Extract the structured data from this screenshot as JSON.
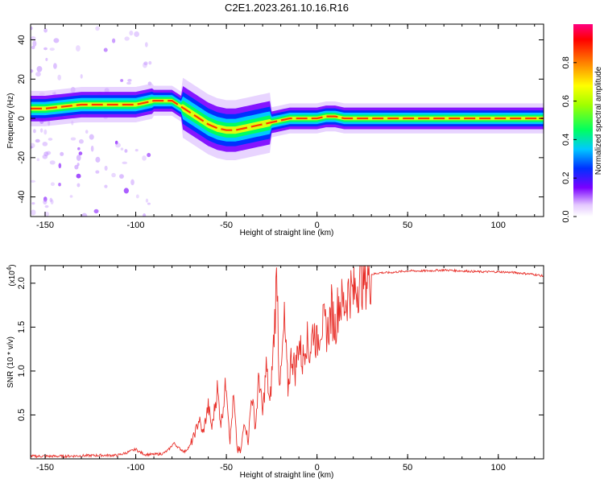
{
  "title": "C2E1.2023.261.10.16.R16",
  "chart_data": [
    {
      "type": "heatmap",
      "xlabel": "Height of straight line (km)",
      "ylabel": "Frequency (Hz)",
      "xlim": [
        -158,
        125
      ],
      "ylim": [
        -50,
        48
      ],
      "xticks": [
        -150,
        -100,
        -50,
        0,
        50,
        100
      ],
      "yticks": [
        -40,
        -20,
        0,
        20,
        40
      ],
      "colorbar": {
        "label": "Normalized spectral amplitude",
        "range": [
          0,
          1
        ],
        "ticks": [
          "0.0",
          "0.2",
          "0.4",
          "0.6",
          "0.8"
        ]
      },
      "ridge": {
        "x": [
          -158,
          -150,
          -140,
          -130,
          -120,
          -110,
          -100,
          -95,
          -90,
          -85,
          -80,
          -75,
          -70,
          -65,
          -60,
          -55,
          -50,
          -45,
          -40,
          -35,
          -30,
          -25,
          -20,
          -15,
          -10,
          -5,
          0,
          5,
          10,
          15,
          20,
          30,
          50,
          75,
          100,
          125
        ],
        "y": [
          5,
          5,
          6,
          7,
          7,
          7,
          7,
          8,
          9,
          9,
          9,
          6,
          3,
          0,
          -3,
          -5,
          -6,
          -6,
          -5,
          -4,
          -3,
          -2,
          -1,
          0,
          0,
          0,
          0,
          1,
          1,
          0,
          0,
          0,
          0,
          0,
          0,
          0
        ]
      }
    },
    {
      "type": "line",
      "xlabel": "Height of straight line (km)",
      "ylabel": "SNR (10 * v/v)",
      "yscale_label": "(x10",
      "yscale_exp": "4",
      "yscale_close": ")",
      "xlim": [
        -158,
        125
      ],
      "ylim": [
        0,
        2.2
      ],
      "xticks": [
        -150,
        -100,
        -50,
        0,
        50,
        100
      ],
      "yticks": [
        0.5,
        1.0,
        1.5,
        2.0
      ],
      "ytick_labels": [
        "0.5",
        "1.0",
        "1.5",
        "2.0"
      ],
      "color": "#e8302a",
      "series": [
        {
          "x": [
            -158,
            -140,
            -120,
            -110,
            -105,
            -100,
            -98,
            -95,
            -90,
            -85,
            -82,
            -79,
            -76,
            -73,
            -70,
            -68,
            -65,
            -63,
            -60,
            -58,
            -55,
            -53,
            -50,
            -48,
            -46,
            -44,
            -42,
            -40,
            -38,
            -36,
            -34,
            -32,
            -30,
            -28,
            -26,
            -24,
            -22,
            -21,
            -20,
            -18,
            -16,
            -14,
            -12,
            -10,
            -8,
            -6,
            -4,
            -2,
            0,
            2,
            4,
            6,
            8,
            10,
            12,
            15,
            18,
            20,
            22,
            25,
            30,
            35,
            40,
            50,
            60,
            70,
            80,
            90,
            100,
            110,
            120,
            125
          ],
          "y": [
            0.03,
            0.03,
            0.04,
            0.04,
            0.07,
            0.11,
            0.08,
            0.05,
            0.05,
            0.06,
            0.1,
            0.18,
            0.12,
            0.08,
            0.15,
            0.25,
            0.45,
            0.28,
            0.6,
            0.35,
            0.8,
            0.4,
            0.9,
            0.2,
            0.7,
            0.1,
            0.08,
            0.45,
            0.2,
            0.75,
            0.35,
            0.95,
            0.5,
            1.05,
            0.6,
            1.3,
            2.15,
            1.0,
            0.9,
            1.55,
            0.8,
            1.2,
            1.0,
            1.35,
            1.1,
            1.4,
            1.2,
            1.5,
            1.3,
            1.55,
            1.5,
            1.45,
            1.7,
            1.5,
            1.8,
            1.75,
            1.95,
            1.85,
            2.0,
            2.05,
            2.1,
            2.12,
            2.12,
            2.14,
            2.14,
            2.15,
            2.14,
            2.13,
            2.13,
            2.12,
            2.1,
            2.08
          ]
        }
      ]
    }
  ]
}
